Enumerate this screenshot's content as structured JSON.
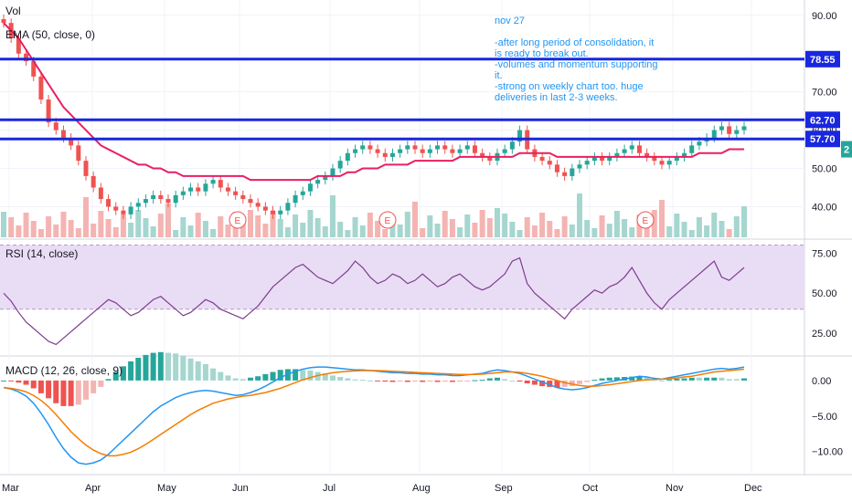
{
  "chart_data": [
    {
      "type": "candlestick",
      "panel": "price",
      "indicator_labels": {
        "volume": "Vol",
        "ema": "EMA (50, close, 0)"
      },
      "y_ticks": [
        "90.00",
        "70.00",
        "60.00",
        "50.00",
        "40.00"
      ],
      "ylim": [
        32,
        94
      ],
      "x_ticks": [
        "Mar",
        "Apr",
        "May",
        "Jun",
        "Jul",
        "Aug",
        "Sep",
        "Oct",
        "Nov",
        "Dec"
      ],
      "levels": [
        {
          "value": 78.55,
          "label": "78.55"
        },
        {
          "value": 62.7,
          "label": "62.70"
        },
        {
          "value": 57.7,
          "label": "57.70"
        }
      ],
      "current_price_badge": "2",
      "earnings_markers": [
        "E",
        "E",
        "E"
      ],
      "annotation": [
        "nov 27",
        "",
        "-after long period of consolidation, it",
        "is ready to break out.",
        "-volumes and momentum supporting",
        "it.",
        "-strong on weekly chart too. huge",
        "deliveries in last 2-3 weeks."
      ],
      "close_series": [
        88,
        84,
        80,
        78,
        74,
        68,
        62,
        60,
        58,
        56,
        52,
        48,
        45,
        42,
        40,
        39,
        38,
        40,
        41,
        42,
        43,
        42,
        41,
        43,
        44,
        45,
        44,
        46,
        47,
        45,
        44,
        43,
        42,
        41,
        40,
        39,
        38,
        39,
        41,
        43,
        44,
        46,
        47,
        48,
        50,
        52,
        54,
        55,
        56,
        55,
        54,
        53,
        54,
        55,
        56,
        55,
        54,
        55,
        56,
        55,
        54,
        55,
        56,
        54,
        53,
        52,
        54,
        55,
        57,
        60,
        55,
        53,
        52,
        51,
        49,
        48,
        50,
        51,
        52,
        53,
        52,
        53,
        54,
        55,
        56,
        54,
        53,
        52,
        51,
        52,
        53,
        54,
        56,
        57,
        58,
        60,
        61,
        59,
        60,
        61
      ],
      "ema_series": [
        88,
        86,
        84,
        81,
        78,
        75,
        72,
        69,
        66,
        64,
        62,
        60,
        58,
        56,
        55,
        54,
        53,
        52,
        51,
        51,
        50,
        50,
        49,
        49,
        48,
        48,
        48,
        48,
        48,
        48,
        48,
        48,
        48,
        47,
        47,
        47,
        47,
        47,
        47,
        47,
        47,
        47,
        48,
        48,
        48,
        48,
        49,
        49,
        50,
        50,
        50,
        51,
        51,
        51,
        51,
        52,
        52,
        52,
        52,
        52,
        52,
        53,
        53,
        53,
        53,
        53,
        53,
        53,
        53,
        54,
        54,
        54,
        54,
        54,
        53,
        53,
        53,
        53,
        53,
        53,
        53,
        53,
        53,
        53,
        53,
        53,
        53,
        53,
        53,
        53,
        53,
        53,
        53,
        54,
        54,
        54,
        54,
        55,
        55,
        55
      ]
    },
    {
      "type": "line",
      "panel": "rsi",
      "label": "RSI (14, close)",
      "y_ticks": [
        "75.00",
        "50.00",
        "25.00"
      ],
      "ylim": [
        12,
        82
      ],
      "band": [
        40,
        80
      ],
      "values": [
        50,
        45,
        38,
        32,
        28,
        24,
        20,
        18,
        22,
        26,
        30,
        34,
        38,
        42,
        46,
        44,
        40,
        36,
        38,
        42,
        46,
        48,
        44,
        40,
        36,
        38,
        42,
        46,
        44,
        40,
        38,
        36,
        34,
        38,
        42,
        48,
        54,
        58,
        62,
        66,
        68,
        64,
        60,
        58,
        56,
        60,
        64,
        70,
        66,
        60,
        56,
        58,
        62,
        60,
        56,
        58,
        62,
        58,
        54,
        56,
        60,
        62,
        58,
        54,
        52,
        54,
        58,
        62,
        70,
        72,
        56,
        50,
        46,
        42,
        38,
        34,
        40,
        44,
        48,
        52,
        50,
        54,
        56,
        60,
        66,
        58,
        50,
        44,
        40,
        46,
        50,
        54,
        58,
        62,
        66,
        70,
        60,
        58,
        62,
        66
      ]
    },
    {
      "type": "macd",
      "panel": "macd",
      "label": "MACD (12, 26, close, 9)",
      "y_ticks": [
        "0.00",
        "−5.00",
        "−10.00"
      ],
      "ylim": [
        -13,
        3.2
      ],
      "macd": [
        -1,
        -1.2,
        -1.6,
        -2.2,
        -3.2,
        -4.6,
        -6.2,
        -8,
        -9.6,
        -10.8,
        -11.6,
        -11.8,
        -11.6,
        -11.2,
        -10.4,
        -9.4,
        -8.4,
        -7.4,
        -6.4,
        -5.4,
        -4.4,
        -3.6,
        -3,
        -2.4,
        -2,
        -1.7,
        -1.5,
        -1.4,
        -1.5,
        -1.7,
        -1.9,
        -2.1,
        -2,
        -1.7,
        -1.3,
        -0.8,
        -0.2,
        0.4,
        0.9,
        1.3,
        1.6,
        1.8,
        1.9,
        1.9,
        1.8,
        1.7,
        1.6,
        1.5,
        1.5,
        1.4,
        1.3,
        1.2,
        1.1,
        1.1,
        1,
        1,
        0.9,
        0.9,
        0.8,
        0.8,
        0.7,
        0.7,
        0.8,
        0.9,
        1,
        1.3,
        1.5,
        1.4,
        1.2,
        1,
        0.6,
        0.2,
        -0.2,
        -0.6,
        -1,
        -1.2,
        -1.3,
        -1.2,
        -1,
        -0.7,
        -0.4,
        -0.2,
        0,
        0.2,
        0.4,
        0.6,
        0.5,
        0.3,
        0.2,
        0.4,
        0.6,
        0.8,
        1.0,
        1.2,
        1.4,
        1.6,
        1.7,
        1.6,
        1.7,
        1.9
      ],
      "signal": [
        -1,
        -1.1,
        -1.3,
        -1.6,
        -2.1,
        -2.8,
        -3.7,
        -4.8,
        -6,
        -7.2,
        -8.2,
        -9.1,
        -9.8,
        -10.3,
        -10.6,
        -10.6,
        -10.4,
        -10.1,
        -9.6,
        -9,
        -8.3,
        -7.6,
        -6.9,
        -6.2,
        -5.5,
        -4.8,
        -4.2,
        -3.7,
        -3.2,
        -2.9,
        -2.6,
        -2.4,
        -2.2,
        -2.1,
        -1.9,
        -1.7,
        -1.4,
        -1.1,
        -0.7,
        -0.3,
        0.1,
        0.4,
        0.7,
        0.9,
        1.1,
        1.2,
        1.3,
        1.35,
        1.4,
        1.4,
        1.4,
        1.35,
        1.3,
        1.25,
        1.2,
        1.15,
        1.1,
        1.05,
        1,
        0.95,
        0.9,
        0.85,
        0.85,
        0.85,
        0.9,
        1,
        1.1,
        1.2,
        1.2,
        1.15,
        1,
        0.8,
        0.6,
        0.3,
        0,
        -0.3,
        -0.5,
        -0.7,
        -0.8,
        -0.8,
        -0.7,
        -0.6,
        -0.45,
        -0.3,
        -0.15,
        0,
        0.1,
        0.15,
        0.2,
        0.25,
        0.35,
        0.5,
        0.6,
        0.8,
        1.0,
        1.2,
        1.3,
        1.4,
        1.5,
        1.6
      ]
    }
  ],
  "colors": {
    "up": "#26a69a",
    "down": "#ef5350",
    "ema": "#e91e63",
    "rsi": "#7e3c8f",
    "band": "#e9ddf5",
    "macd": "#2196f3",
    "signal": "#f57c00",
    "level": "#1927e0",
    "note": "#2196f3",
    "grid": "#f0f3fa"
  }
}
